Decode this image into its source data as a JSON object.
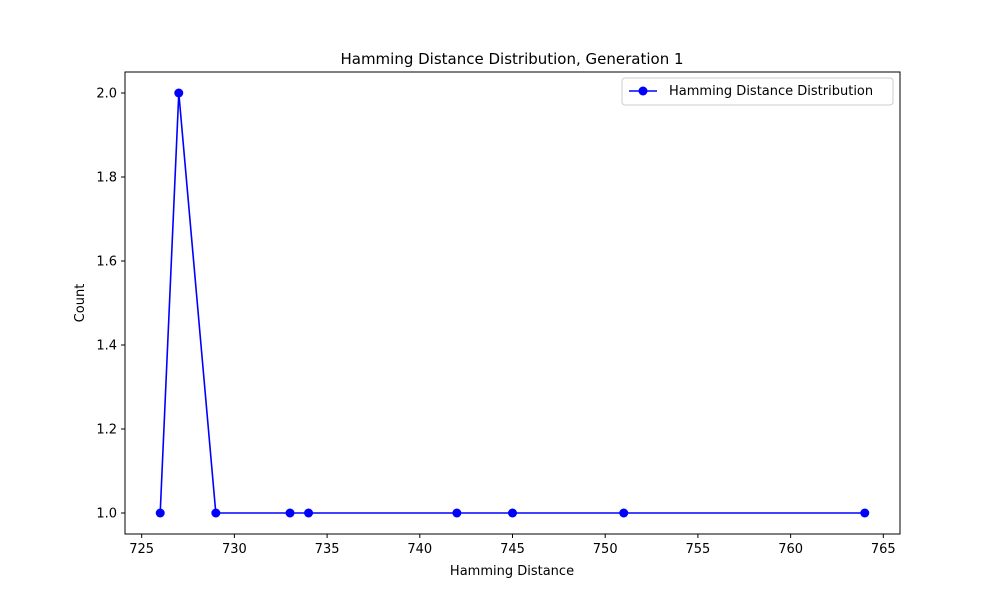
{
  "chart_data": {
    "type": "line",
    "title": "Hamming Distance Distribution, Generation 1",
    "xlabel": "Hamming Distance",
    "ylabel": "Count",
    "xlim": [
      724.1,
      765.9
    ],
    "ylim": [
      0.95,
      2.05
    ],
    "x_ticks": [
      725,
      730,
      735,
      740,
      745,
      750,
      755,
      760,
      765
    ],
    "y_ticks": [
      1.0,
      1.2,
      1.4,
      1.6,
      1.8,
      2.0
    ],
    "grid": false,
    "legend_position": "top-right",
    "series": [
      {
        "name": "Hamming Distance Distribution",
        "color": "#0000ff",
        "marker": "circle",
        "x": [
          726,
          727,
          729,
          733,
          734,
          742,
          745,
          751,
          764
        ],
        "y": [
          1,
          2,
          1,
          1,
          1,
          1,
          1,
          1,
          1
        ]
      }
    ]
  }
}
